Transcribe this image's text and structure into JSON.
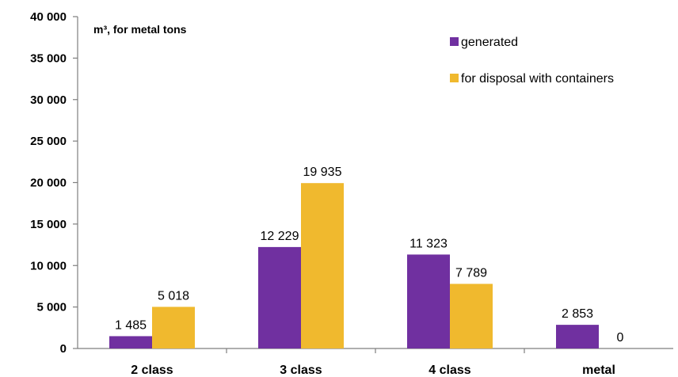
{
  "chart_data": {
    "type": "bar",
    "unit_label": "m³, for metal tons",
    "categories": [
      "2 class",
      "3 class",
      "4 class",
      "metal"
    ],
    "series": [
      {
        "name": "generated",
        "color": "#7030a0",
        "values": [
          1485,
          12229,
          11323,
          2853
        ],
        "labels": [
          "1 485",
          "12 229",
          "11 323",
          "2 853"
        ]
      },
      {
        "name": "for disposal with containers",
        "color": "#f0b92e",
        "values": [
          5018,
          19935,
          7789,
          0
        ],
        "labels": [
          "5 018",
          "19 935",
          "7 789",
          "0"
        ]
      }
    ],
    "ylim": [
      0,
      40000
    ],
    "yticks": [
      "0",
      "5 000",
      "10 000",
      "15 000",
      "20 000",
      "25 000",
      "30 000",
      "35 000",
      "40 000"
    ],
    "grid": false,
    "legend_position": "top-right"
  }
}
